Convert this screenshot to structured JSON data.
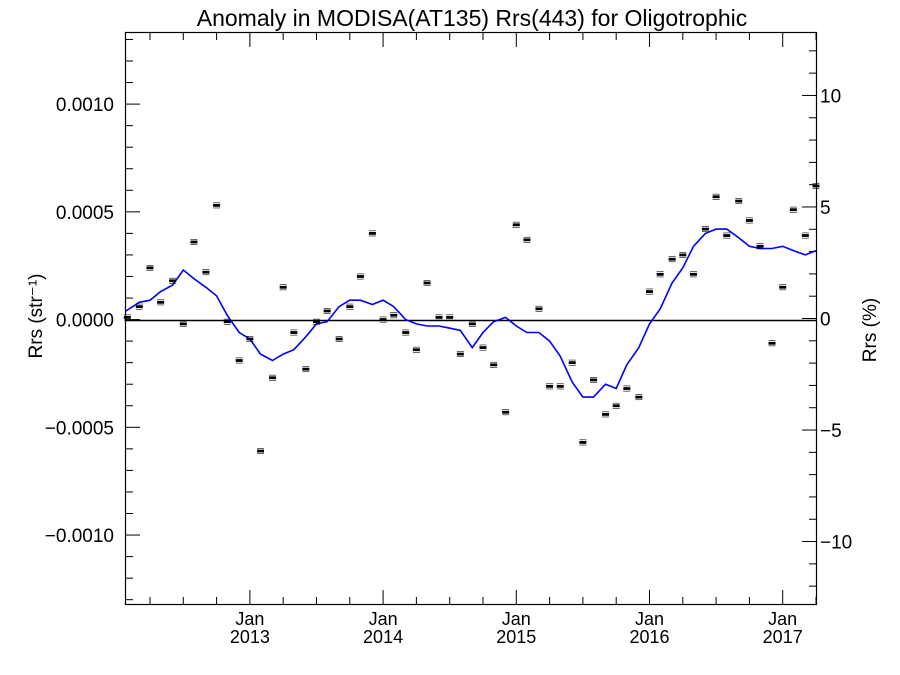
{
  "chart_data": {
    "type": "scatter",
    "title": "Anomaly in MODISA(AT135) Rrs(443) for Oligotrophic",
    "ylabel_left": "Rrs (str⁻¹)",
    "ylabel_right": "Rrs (%)",
    "xlim": [
      2012.07,
      2017.25
    ],
    "ylim": [
      -0.00132,
      0.00133
    ],
    "ylim_right": [
      -12.8,
      12.8
    ],
    "grid": false,
    "line_color": "#0000ff",
    "marker_color": "#000000",
    "left_ticks": [
      {
        "value": 0.001,
        "label": "0.0010"
      },
      {
        "value": 0.0005,
        "label": "0.0005"
      },
      {
        "value": 0.0,
        "label": "0.0000"
      },
      {
        "value": -0.0005,
        "label": "−0.0005"
      },
      {
        "value": -0.001,
        "label": "−0.0010"
      }
    ],
    "right_ticks": [
      {
        "value": 10,
        "label": "10"
      },
      {
        "value": 5,
        "label": "5"
      },
      {
        "value": 0,
        "label": "0"
      },
      {
        "value": -5,
        "label": "−5"
      },
      {
        "value": -10,
        "label": "−10"
      }
    ],
    "x_ticks": [
      {
        "value": 2013.0,
        "month": "Jan",
        "year": "2013"
      },
      {
        "value": 2014.0,
        "month": "Jan",
        "year": "2014"
      },
      {
        "value": 2015.0,
        "month": "Jan",
        "year": "2015"
      },
      {
        "value": 2016.0,
        "month": "Jan",
        "year": "2016"
      },
      {
        "value": 2017.0,
        "month": "Jan",
        "year": "2017"
      }
    ],
    "series": [
      {
        "kind": "points",
        "x": [
          2012.08,
          2012.17,
          2012.25,
          2012.33,
          2012.42,
          2012.5,
          2012.58,
          2012.67,
          2012.75,
          2012.83,
          2012.92,
          2013.0,
          2013.08,
          2013.17,
          2013.25,
          2013.33,
          2013.42,
          2013.5,
          2013.58,
          2013.67,
          2013.75,
          2013.83,
          2013.92,
          2014.0,
          2014.08,
          2014.17,
          2014.25,
          2014.33,
          2014.42,
          2014.5,
          2014.58,
          2014.67,
          2014.75,
          2014.83,
          2014.92,
          2015.0,
          2015.08,
          2015.17,
          2015.25,
          2015.33,
          2015.42,
          2015.5,
          2015.58,
          2015.67,
          2015.75,
          2015.83,
          2015.92,
          2016.0,
          2016.08,
          2016.17,
          2016.25,
          2016.33,
          2016.42,
          2016.5,
          2016.58,
          2016.67,
          2016.75,
          2016.83,
          2016.92,
          2017.0,
          2017.08,
          2017.17,
          2017.25
        ],
        "values": [
          1e-05,
          6e-05,
          0.00024,
          8e-05,
          0.00018,
          -2e-05,
          0.00036,
          0.00022,
          0.00053,
          -1e-05,
          -0.00019,
          -9e-05,
          -0.00061,
          -0.00027,
          0.00015,
          -6e-05,
          -0.00023,
          -1e-05,
          4e-05,
          -9e-05,
          6e-05,
          0.0002,
          0.0004,
          0.0,
          2e-05,
          -6e-05,
          -0.00014,
          0.00017,
          1e-05,
          1e-05,
          -0.00016,
          -2e-05,
          -0.00013,
          -0.00021,
          -0.00043,
          0.00044,
          0.00037,
          5e-05,
          -0.00031,
          -0.00031,
          -0.0002,
          -0.00057,
          -0.00028,
          -0.00044,
          -0.0004,
          -0.00032,
          -0.00036,
          0.00013,
          0.00021,
          0.00028,
          0.0003,
          0.00021,
          0.00042,
          0.00057,
          0.00039,
          0.00055,
          0.00046,
          0.00034,
          -0.00011,
          0.00015,
          0.00051,
          0.00039,
          0.00062
        ]
      },
      {
        "kind": "line",
        "x": [
          2012.07,
          2012.17,
          2012.25,
          2012.33,
          2012.42,
          2012.5,
          2012.58,
          2012.67,
          2012.75,
          2012.83,
          2012.92,
          2013.0,
          2013.08,
          2013.17,
          2013.25,
          2013.33,
          2013.42,
          2013.5,
          2013.58,
          2013.67,
          2013.75,
          2013.83,
          2013.92,
          2014.0,
          2014.08,
          2014.17,
          2014.25,
          2014.33,
          2014.42,
          2014.5,
          2014.58,
          2014.67,
          2014.75,
          2014.83,
          2014.92,
          2015.0,
          2015.08,
          2015.17,
          2015.25,
          2015.33,
          2015.42,
          2015.5,
          2015.58,
          2015.67,
          2015.75,
          2015.83,
          2015.92,
          2016.0,
          2016.08,
          2016.17,
          2016.25,
          2016.33,
          2016.42,
          2016.5,
          2016.58,
          2016.67,
          2016.75,
          2016.83,
          2016.92,
          2017.0,
          2017.08,
          2017.17,
          2017.25
        ],
        "values": [
          4e-05,
          8e-05,
          9e-05,
          0.00013,
          0.00016,
          0.00023,
          0.00019,
          0.00015,
          0.00011,
          2e-05,
          -6e-05,
          -9e-05,
          -0.00016,
          -0.00019,
          -0.00016,
          -0.00014,
          -8e-05,
          -2e-05,
          -1e-05,
          6e-05,
          9e-05,
          9e-05,
          7e-05,
          9e-05,
          6e-05,
          0.0,
          -2e-05,
          -3e-05,
          -3e-05,
          -4e-05,
          -5e-05,
          -0.00013,
          -6e-05,
          -1e-05,
          1e-05,
          -3e-05,
          -6e-05,
          -6e-05,
          -0.0001,
          -0.00017,
          -0.00029,
          -0.00036,
          -0.00036,
          -0.0003,
          -0.00032,
          -0.00021,
          -0.00013,
          -2e-05,
          5e-05,
          0.00017,
          0.00024,
          0.00034,
          0.0004,
          0.00042,
          0.00042,
          0.00038,
          0.00034,
          0.00033,
          0.00033,
          0.00034,
          0.00032,
          0.0003,
          0.00032
        ]
      }
    ]
  }
}
